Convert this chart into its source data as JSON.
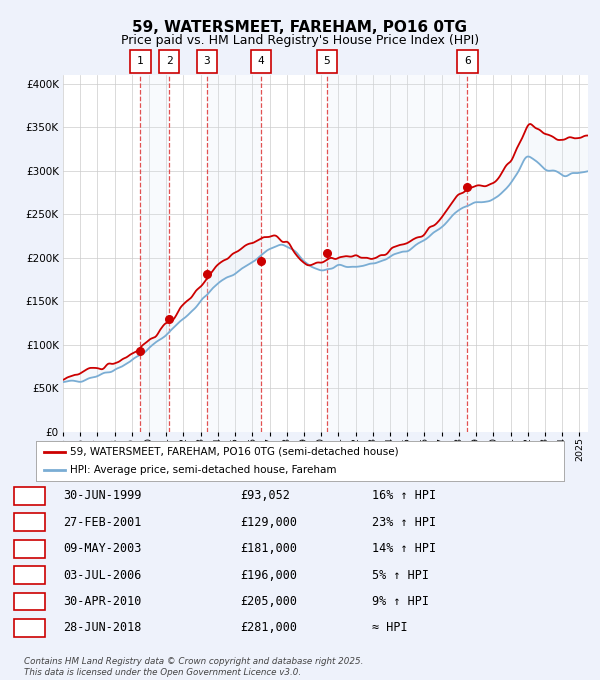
{
  "title": "59, WATERSMEET, FAREHAM, PO16 0TG",
  "subtitle": "Price paid vs. HM Land Registry's House Price Index (HPI)",
  "title_fontsize": 11,
  "subtitle_fontsize": 9,
  "bg_color": "#eef2fb",
  "plot_bg_color": "#ffffff",
  "red_line_color": "#cc0000",
  "blue_line_color": "#7aadd4",
  "grid_color": "#cccccc",
  "ylim": [
    0,
    410000
  ],
  "yticks": [
    0,
    50000,
    100000,
    150000,
    200000,
    250000,
    300000,
    350000,
    400000
  ],
  "ytick_labels": [
    "£0",
    "£50K",
    "£100K",
    "£150K",
    "£200K",
    "£250K",
    "£300K",
    "£350K",
    "£400K"
  ],
  "sale_dates_decimal": [
    1999.5,
    2001.17,
    2003.36,
    2006.5,
    2010.33,
    2018.49
  ],
  "sale_prices": [
    93052,
    129000,
    181000,
    196000,
    205000,
    281000
  ],
  "sale_labels": [
    "1",
    "2",
    "3",
    "4",
    "5",
    "6"
  ],
  "vline_color": "#dd3333",
  "shade_color": "#dde8f5",
  "legend_red_label": "59, WATERSMEET, FAREHAM, PO16 0TG (semi-detached house)",
  "legend_blue_label": "HPI: Average price, semi-detached house, Fareham",
  "table_rows": [
    [
      "1",
      "30-JUN-1999",
      "£93,052",
      "16% ↑ HPI"
    ],
    [
      "2",
      "27-FEB-2001",
      "£129,000",
      "23% ↑ HPI"
    ],
    [
      "3",
      "09-MAY-2003",
      "£181,000",
      "14% ↑ HPI"
    ],
    [
      "4",
      "03-JUL-2006",
      "£196,000",
      "5% ↑ HPI"
    ],
    [
      "5",
      "30-APR-2010",
      "£205,000",
      "9% ↑ HPI"
    ],
    [
      "6",
      "28-JUN-2018",
      "£281,000",
      "≈ HPI"
    ]
  ],
  "footer": "Contains HM Land Registry data © Crown copyright and database right 2025.\nThis data is licensed under the Open Government Licence v3.0.",
  "xmin": 1995.0,
  "xmax": 2025.5
}
